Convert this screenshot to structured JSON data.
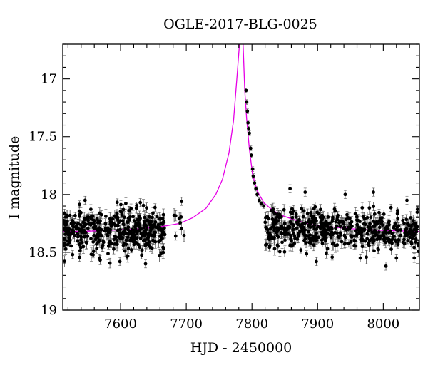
{
  "chart_data": {
    "type": "scatter",
    "title": "OGLE-2017-BLG-0025",
    "xlabel": "HJD - 2450000",
    "ylabel": "I magnitude",
    "xlim": [
      7512,
      8055
    ],
    "ylim": [
      19.0,
      16.7
    ],
    "y_inverted": true,
    "x_ticks": [
      7600,
      7700,
      7800,
      7900,
      8000
    ],
    "y_ticks": [
      17,
      17.5,
      18,
      18.5,
      19
    ],
    "x_tick_labels": [
      "7600",
      "7700",
      "7800",
      "7900",
      "8000"
    ],
    "y_tick_labels": [
      "17",
      "17.5",
      "18",
      "18.5",
      "19"
    ],
    "grid": false,
    "colors": {
      "data": "#000000",
      "model": "#e600e6",
      "errorbar": "#555555"
    },
    "model": {
      "name": "",
      "description_shown": false,
      "x": [
        7512,
        7540,
        7580,
        7620,
        7660,
        7690,
        7710,
        7730,
        7745,
        7755,
        7765,
        7772,
        7777,
        7781,
        7783,
        7784.5,
        7786,
        7789,
        7792,
        7796,
        7801,
        7808,
        7818,
        7830,
        7845,
        7865,
        7890,
        7920,
        7960,
        8000,
        8055
      ],
      "y": [
        18.32,
        18.32,
        18.31,
        18.3,
        18.28,
        18.25,
        18.2,
        18.12,
        18.0,
        17.87,
        17.64,
        17.36,
        17.0,
        16.7,
        16.62,
        16.62,
        16.62,
        17.1,
        17.35,
        17.6,
        17.83,
        17.97,
        18.07,
        18.13,
        18.18,
        18.22,
        18.26,
        18.28,
        18.3,
        18.31,
        18.32
      ]
    },
    "observations": {
      "name": "",
      "segments": [
        {
          "x_range": [
            7512,
            7668
          ],
          "baseline": 18.32,
          "scatter": 0.11,
          "count": 420
        },
        {
          "x_range": [
            7680,
            7700
          ],
          "baseline": 18.25,
          "scatter": 0.08,
          "count": 8
        },
        {
          "x_range": [
            7820,
            8055
          ],
          "baseline": 18.31,
          "scatter": 0.1,
          "count": 520
        }
      ],
      "rising_limb": [
        {
          "x": 7791,
          "y": 17.1
        },
        {
          "x": 7792,
          "y": 17.2
        },
        {
          "x": 7793,
          "y": 17.28
        },
        {
          "x": 7794,
          "y": 17.38
        },
        {
          "x": 7795,
          "y": 17.43
        },
        {
          "x": 7796,
          "y": 17.47
        },
        {
          "x": 7798,
          "y": 17.6
        },
        {
          "x": 7799,
          "y": 17.66
        },
        {
          "x": 7801,
          "y": 17.78
        },
        {
          "x": 7802,
          "y": 17.84
        },
        {
          "x": 7804,
          "y": 17.9
        },
        {
          "x": 7806,
          "y": 17.95
        },
        {
          "x": 7808,
          "y": 18.0
        },
        {
          "x": 7811,
          "y": 18.05
        },
        {
          "x": 7814,
          "y": 18.08
        },
        {
          "x": 7818,
          "y": 18.1
        }
      ],
      "outliers": [
        {
          "x": 7693,
          "y": 18.06
        },
        {
          "x": 7527,
          "y": 18.52
        },
        {
          "x": 7546,
          "y": 18.05
        },
        {
          "x": 7568,
          "y": 18.55
        },
        {
          "x": 7599,
          "y": 18.58
        },
        {
          "x": 7630,
          "y": 18.07
        },
        {
          "x": 7638,
          "y": 18.6
        },
        {
          "x": 7858,
          "y": 17.95
        },
        {
          "x": 7881,
          "y": 17.98
        },
        {
          "x": 7898,
          "y": 18.58
        },
        {
          "x": 7942,
          "y": 18.0
        },
        {
          "x": 7965,
          "y": 18.55
        },
        {
          "x": 7985,
          "y": 17.98
        },
        {
          "x": 8004,
          "y": 18.62
        },
        {
          "x": 8020,
          "y": 18.55
        },
        {
          "x": 8036,
          "y": 18.05
        }
      ]
    }
  }
}
